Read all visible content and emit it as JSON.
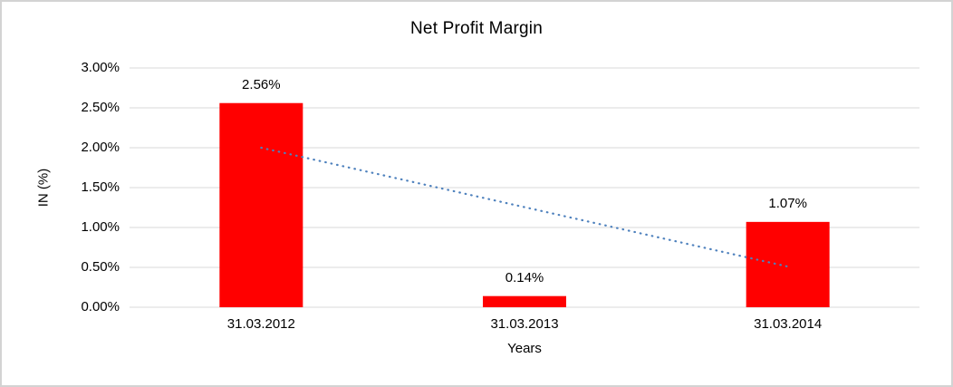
{
  "chart_data": {
    "type": "bar",
    "title": "Net Profit Margin",
    "xlabel": "Years",
    "ylabel": "IN (%)",
    "categories": [
      "31.03.2012",
      "31.03.2013",
      "31.03.2014"
    ],
    "values": [
      2.56,
      0.14,
      1.07
    ],
    "data_labels": [
      "2.56%",
      "0.14%",
      "1.07%"
    ],
    "ylim": [
      0,
      3
    ],
    "y_tick_step": 0.5,
    "y_tick_labels": [
      "0.00%",
      "0.50%",
      "1.00%",
      "1.50%",
      "2.00%",
      "2.50%",
      "3.00%"
    ],
    "grid": true,
    "legend": "none",
    "trendline": {
      "type": "linear",
      "style": "dotted",
      "start_value": 2.0,
      "end_value": 0.51
    }
  },
  "style": {
    "bar_color": "#FF0000",
    "trendline_color": "#4E81BD",
    "gridline_color": "#D9D9D9",
    "text_color": "#000000",
    "background_color": "#FFFFFF",
    "frame_border_color": "#D3D3D3"
  }
}
